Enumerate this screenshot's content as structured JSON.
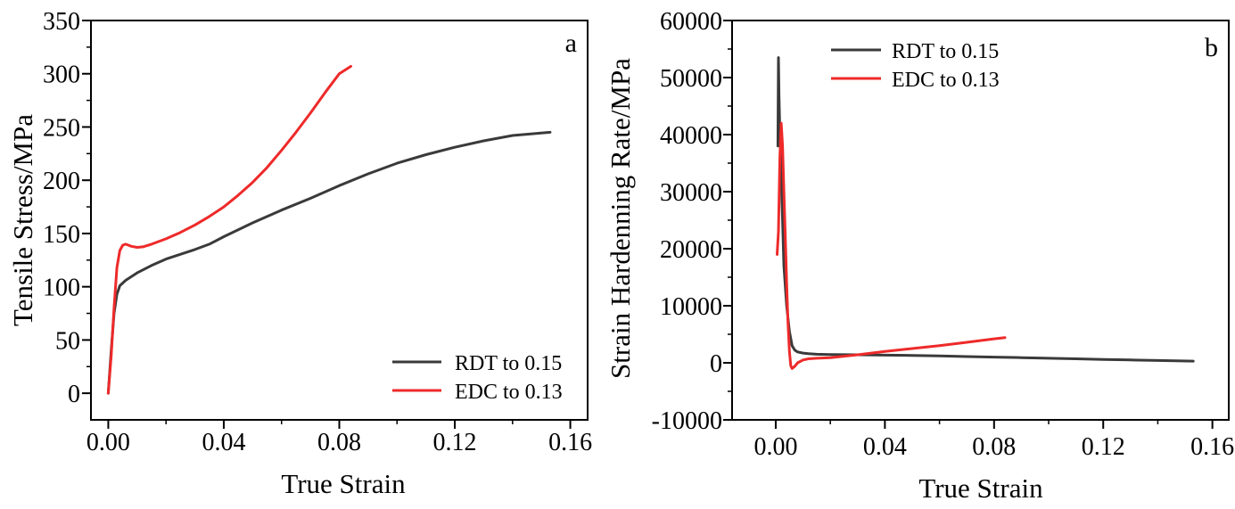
{
  "colors": {
    "rdt": "#3a3a3a",
    "edc": "#ee2a2a",
    "axis": "#000000"
  },
  "chart_data": [
    {
      "type": "line",
      "panel_label": "a",
      "xlabel": "True Strain",
      "ylabel": "Tensile Stress/MPa",
      "xlim": [
        -0.006,
        0.166
      ],
      "ylim": [
        -25,
        350
      ],
      "xticks": [
        0.0,
        0.04,
        0.08,
        0.12,
        0.16
      ],
      "xtick_labels": [
        "0.00",
        "0.04",
        "0.08",
        "0.12",
        "0.16"
      ],
      "yticks": [
        0,
        50,
        100,
        150,
        200,
        250,
        300,
        350
      ],
      "ytick_labels": [
        "0",
        "50",
        "100",
        "150",
        "200",
        "250",
        "300",
        "350"
      ],
      "grid": false,
      "legend_position": "bottom-right",
      "series": [
        {
          "name": "RDT to 0.15",
          "color_key": "rdt",
          "x": [
            0.0,
            0.001,
            0.002,
            0.003,
            0.004,
            0.006,
            0.01,
            0.015,
            0.02,
            0.03,
            0.035,
            0.04,
            0.05,
            0.06,
            0.07,
            0.08,
            0.09,
            0.1,
            0.11,
            0.12,
            0.13,
            0.14,
            0.153
          ],
          "y": [
            0,
            40,
            75,
            93,
            101,
            106,
            113,
            120,
            126,
            135,
            140,
            147,
            160,
            172,
            183,
            195,
            206,
            216,
            224,
            231,
            237,
            242,
            245
          ]
        },
        {
          "name": "EDC to 0.13",
          "color_key": "edc",
          "x": [
            0.0,
            0.001,
            0.002,
            0.003,
            0.004,
            0.005,
            0.006,
            0.008,
            0.01,
            0.012,
            0.015,
            0.02,
            0.025,
            0.03,
            0.035,
            0.04,
            0.045,
            0.05,
            0.055,
            0.06,
            0.065,
            0.07,
            0.075,
            0.08,
            0.084
          ],
          "y": [
            0,
            35,
            80,
            118,
            134,
            139,
            140,
            138,
            137,
            137.5,
            140,
            145,
            151,
            158,
            166,
            175,
            186,
            198,
            212,
            228,
            245,
            263,
            282,
            300,
            307
          ]
        }
      ]
    },
    {
      "type": "line",
      "panel_label": "b",
      "xlabel": "True Strain",
      "ylabel": "Strain Hardenning Rate/MPa",
      "xlim": [
        -0.016,
        0.166
      ],
      "ylim": [
        -10000,
        60000
      ],
      "xticks": [
        0.0,
        0.04,
        0.08,
        0.12,
        0.16
      ],
      "xtick_labels": [
        "0.00",
        "0.04",
        "0.08",
        "0.12",
        "0.16"
      ],
      "yticks": [
        -10000,
        0,
        10000,
        20000,
        30000,
        40000,
        50000,
        60000
      ],
      "ytick_labels": [
        "-10000",
        "0",
        "10000",
        "20000",
        "30000",
        "40000",
        "50000",
        "60000"
      ],
      "grid": false,
      "legend_position": "top-left",
      "series": [
        {
          "name": "RDT to 0.15",
          "color_key": "rdt",
          "x": [
            0.0008,
            0.001,
            0.0012,
            0.0015,
            0.002,
            0.0025,
            0.003,
            0.004,
            0.005,
            0.006,
            0.007,
            0.008,
            0.01,
            0.012,
            0.015,
            0.02,
            0.03,
            0.04,
            0.05,
            0.06,
            0.07,
            0.08,
            0.09,
            0.1,
            0.11,
            0.12,
            0.13,
            0.14,
            0.153
          ],
          "y": [
            38000,
            53500,
            47000,
            40000,
            33000,
            25000,
            17000,
            10000,
            5500,
            3000,
            2200,
            1900,
            1700,
            1600,
            1500,
            1450,
            1400,
            1350,
            1300,
            1200,
            1100,
            1000,
            900,
            800,
            700,
            600,
            500,
            400,
            300
          ]
        },
        {
          "name": "EDC to 0.13",
          "color_key": "edc",
          "x": [
            0.0005,
            0.001,
            0.0015,
            0.002,
            0.0025,
            0.003,
            0.0035,
            0.004,
            0.0045,
            0.005,
            0.0055,
            0.006,
            0.007,
            0.008,
            0.01,
            0.012,
            0.015,
            0.02,
            0.03,
            0.04,
            0.05,
            0.06,
            0.07,
            0.08,
            0.084
          ],
          "y": [
            19000,
            23000,
            36000,
            42000,
            38000,
            30000,
            22000,
            14000,
            7000,
            2000,
            -500,
            -1000,
            -600,
            0,
            500,
            700,
            800,
            900,
            1400,
            2000,
            2500,
            3000,
            3600,
            4200,
            4400
          ]
        }
      ]
    }
  ]
}
